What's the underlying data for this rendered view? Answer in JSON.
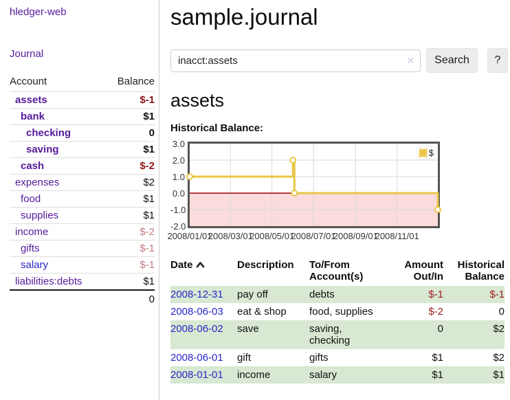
{
  "colors": {
    "brand_purple": "#551a9b",
    "link_blue": "#2a27c8",
    "negative_dark_red": "#8f1616",
    "negative_pale_red": "#c07b80",
    "row_green": "#d8e8d2",
    "series_gold": "#e9c646"
  },
  "app": {
    "brand": "hledger-web"
  },
  "nav": {
    "journal": "Journal"
  },
  "sidebar": {
    "header": {
      "account": "Account",
      "balance": "Balance"
    },
    "accounts": [
      {
        "name": "assets",
        "balance": "$-1",
        "depth": 1
      },
      {
        "name": "bank",
        "balance": "$1",
        "depth": 2
      },
      {
        "name": "checking",
        "balance": "0",
        "depth": 3
      },
      {
        "name": "saving",
        "balance": "$1",
        "depth": 3
      },
      {
        "name": "cash",
        "balance": "$-2",
        "depth": 2
      },
      {
        "name": "expenses",
        "balance": "$2",
        "depth": 1
      },
      {
        "name": "food",
        "balance": "$1",
        "depth": 2
      },
      {
        "name": "supplies",
        "balance": "$1",
        "depth": 2
      },
      {
        "name": "income",
        "balance": "$-2",
        "depth": 1
      },
      {
        "name": "gifts",
        "balance": "$-1",
        "depth": 2
      },
      {
        "name": "salary",
        "balance": "$-1",
        "depth": 2
      },
      {
        "name": "liabilities:debts",
        "balance": "$1",
        "depth": 1
      }
    ],
    "total": "0"
  },
  "page": {
    "title": "sample.journal",
    "account_heading": "assets"
  },
  "search": {
    "value": "inacct:assets",
    "clear_icon": "✕",
    "search_label": "Search",
    "help_label": "?"
  },
  "chart_data": {
    "type": "line",
    "title": "Historical Balance:",
    "step": true,
    "grid": true,
    "legend_position": "top-right",
    "series": [
      {
        "name": "$",
        "color": "#e9c646",
        "points": [
          [
            "2008-01-01",
            1
          ],
          [
            "2008-06-01",
            2
          ],
          [
            "2008-06-02",
            2
          ],
          [
            "2008-06-03",
            0
          ],
          [
            "2008-12-31",
            -1
          ]
        ]
      }
    ],
    "xlim": [
      "2008-01-01",
      "2008-12-31"
    ],
    "ylim": [
      -2,
      3
    ],
    "yticks": [
      3.0,
      2.0,
      1.0,
      0.0,
      -1.0,
      -2.0
    ],
    "xticks": [
      "2008/01/01",
      "2008/03/01",
      "2008/05/01",
      "2008/07/01",
      "2008/09/01",
      "2008/11/01"
    ],
    "zero_line_color": "#990000",
    "negative_region_color": "#fbdcdc",
    "gridline_color": "#d9d9d9"
  },
  "transactions": {
    "headers": {
      "date": "Date",
      "description": "Description",
      "accounts": "To/From Account(s)",
      "amount": "Amount Out/In",
      "balance": "Historical Balance"
    },
    "rows": [
      {
        "date": "2008-12-31",
        "description": "pay off",
        "accounts": "debts",
        "amount": "$-1",
        "balance": "$-1"
      },
      {
        "date": "2008-06-03",
        "description": "eat & shop",
        "accounts": "food, supplies",
        "amount": "$-2",
        "balance": "0"
      },
      {
        "date": "2008-06-02",
        "description": "save",
        "accounts": "saving, checking",
        "amount": "0",
        "balance": "$2"
      },
      {
        "date": "2008-06-01",
        "description": "gift",
        "accounts": "gifts",
        "amount": "$1",
        "balance": "$2"
      },
      {
        "date": "2008-01-01",
        "description": "income",
        "accounts": "salary",
        "amount": "$1",
        "balance": "$1"
      }
    ]
  }
}
